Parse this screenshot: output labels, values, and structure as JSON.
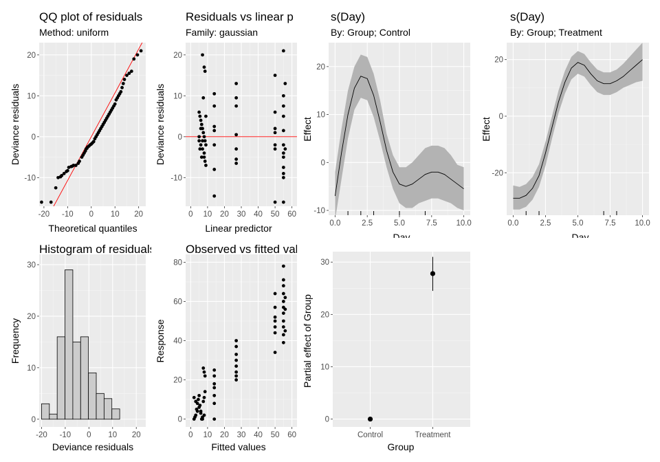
{
  "colors": {
    "panel_bg": "#ebebeb",
    "grid_major": "#ffffff",
    "grid_minor": "#f5f5f5",
    "tick_text": "#4d4d4d",
    "point": "#000000",
    "reference_line": "#ff0000",
    "ribbon": "#b3b3b3",
    "histogram_fill": "#cccccc",
    "histogram_edge": "#000000"
  },
  "chart_data": [
    {
      "id": "qq",
      "type": "scatter",
      "title": "QQ plot of residuals",
      "subtitle": "Method: uniform",
      "xlabel": "Theoretical quantiles",
      "ylabel": "Deviance residuals",
      "xlim": [
        -22,
        23
      ],
      "ylim": [
        -17,
        23
      ],
      "xticks": [
        -20,
        -10,
        0,
        10,
        20
      ],
      "yticks": [
        -10,
        0,
        10,
        20
      ],
      "reference_line": {
        "intercept": 0,
        "slope": 1.07
      },
      "points": [
        [
          -21,
          -16
        ],
        [
          -17,
          -16
        ],
        [
          -15,
          -12.5
        ],
        [
          -14,
          -10
        ],
        [
          -13,
          -9.8
        ],
        [
          -12.5,
          -9.5
        ],
        [
          -11.5,
          -9
        ],
        [
          -10.5,
          -8.5
        ],
        [
          -10,
          -8.3
        ],
        [
          -9.5,
          -7.5
        ],
        [
          -8.5,
          -7.3
        ],
        [
          -8,
          -7.2
        ],
        [
          -7.5,
          -7
        ],
        [
          -6.5,
          -7
        ],
        [
          -5.5,
          -6.5
        ],
        [
          -5,
          -6
        ],
        [
          -4,
          -5
        ],
        [
          -3.5,
          -4.5
        ],
        [
          -3,
          -4
        ],
        [
          -2.5,
          -3.5
        ],
        [
          -2.2,
          -3
        ],
        [
          -1.8,
          -2.8
        ],
        [
          -1.5,
          -2.5
        ],
        [
          -1,
          -2.3
        ],
        [
          -0.5,
          -2
        ],
        [
          0,
          -1.8
        ],
        [
          0.5,
          -1.5
        ],
        [
          1,
          -1.2
        ],
        [
          1.5,
          -0.5
        ],
        [
          2,
          0
        ],
        [
          2.5,
          0.5
        ],
        [
          3,
          1
        ],
        [
          3.5,
          1.5
        ],
        [
          4,
          2
        ],
        [
          4.5,
          2.5
        ],
        [
          5,
          3
        ],
        [
          5.5,
          3.5
        ],
        [
          6,
          4
        ],
        [
          6.5,
          4.5
        ],
        [
          7,
          5
        ],
        [
          7.5,
          5.5
        ],
        [
          8,
          6
        ],
        [
          8.5,
          6.5
        ],
        [
          9,
          7
        ],
        [
          9.5,
          7.5
        ],
        [
          10,
          8
        ],
        [
          10.5,
          9
        ],
        [
          11,
          9.5
        ],
        [
          11.5,
          10
        ],
        [
          12,
          10.5
        ],
        [
          12.5,
          11
        ],
        [
          13,
          12
        ],
        [
          13.5,
          13
        ],
        [
          14,
          14
        ],
        [
          15,
          15
        ],
        [
          16,
          15.5
        ],
        [
          17,
          16
        ],
        [
          18,
          19
        ],
        [
          19.5,
          20
        ],
        [
          21,
          21
        ]
      ]
    },
    {
      "id": "resid_vs_lp",
      "type": "scatter",
      "title": "Residuals vs linear p",
      "subtitle": "Family: gaussian",
      "xlabel": "Linear predictor",
      "ylabel": "Deviance residuals",
      "xlim": [
        -3,
        63
      ],
      "ylim": [
        -17,
        23
      ],
      "xticks": [
        0,
        10,
        20,
        30,
        40,
        50,
        60
      ],
      "yticks": [
        -10,
        0,
        10,
        20
      ],
      "reference_line": {
        "intercept": 0,
        "slope": 0
      },
      "points": [
        [
          5,
          6
        ],
        [
          5.5,
          5
        ],
        [
          6,
          4
        ],
        [
          6.5,
          3
        ],
        [
          7,
          2
        ],
        [
          7.5,
          1
        ],
        [
          8,
          0
        ],
        [
          8.5,
          -1
        ],
        [
          9,
          -2
        ],
        [
          5,
          -1
        ],
        [
          6,
          -2
        ],
        [
          7,
          -3
        ],
        [
          8,
          -4
        ],
        [
          8.5,
          -6
        ],
        [
          9,
          -7
        ],
        [
          5.5,
          -3
        ],
        [
          6.5,
          -5
        ],
        [
          7.5,
          9.5
        ],
        [
          8,
          17
        ],
        [
          8.5,
          16
        ],
        [
          7,
          20
        ],
        [
          9,
          5
        ],
        [
          6,
          2
        ],
        [
          5,
          0
        ],
        [
          8,
          -5
        ],
        [
          7,
          -1
        ],
        [
          14,
          10.5
        ],
        [
          14,
          7.5
        ],
        [
          14,
          2.5
        ],
        [
          14,
          1.5
        ],
        [
          14,
          -2
        ],
        [
          14,
          -8
        ],
        [
          14,
          -14.5
        ],
        [
          27,
          13
        ],
        [
          27,
          9.5
        ],
        [
          27,
          7.5
        ],
        [
          27,
          0.5
        ],
        [
          27,
          -3
        ],
        [
          27,
          -5.5
        ],
        [
          27,
          -6.5
        ],
        [
          50,
          15
        ],
        [
          50,
          6
        ],
        [
          50,
          2
        ],
        [
          50,
          1
        ],
        [
          50,
          -2
        ],
        [
          50,
          -3
        ],
        [
          50,
          -16
        ],
        [
          55,
          21
        ],
        [
          55,
          10
        ],
        [
          55,
          7.5
        ],
        [
          55,
          5
        ],
        [
          55,
          1.5
        ],
        [
          55,
          -2
        ],
        [
          55,
          -4
        ],
        [
          55,
          -5
        ],
        [
          55,
          -7.5
        ],
        [
          55,
          -9
        ],
        [
          55,
          -10
        ],
        [
          55,
          -16
        ],
        [
          56,
          13
        ],
        [
          56,
          -3
        ]
      ]
    },
    {
      "id": "s_day_control",
      "type": "line",
      "title": "s(Day)",
      "subtitle": "By: Group; Control",
      "xlabel": "Day",
      "ylabel": "Effect",
      "xlim": [
        -0.5,
        10.5
      ],
      "ylim": [
        -11,
        25
      ],
      "xticks": [
        0.0,
        2.5,
        5.0,
        7.5,
        10.0
      ],
      "xtick_labels": [
        "0.0",
        "2.5",
        "5.0",
        "7.5",
        "10.0"
      ],
      "yticks": [
        -10,
        0,
        10,
        20
      ],
      "rug": [
        1,
        2,
        3,
        5,
        7
      ],
      "x": [
        0,
        0.5,
        1,
        1.5,
        2,
        2.5,
        3,
        3.5,
        4,
        4.5,
        5,
        5.5,
        6,
        6.5,
        7,
        7.5,
        8,
        8.5,
        9,
        9.5,
        10
      ],
      "y": [
        -7,
        2,
        10,
        15.5,
        18,
        17.5,
        14,
        8.5,
        2.5,
        -2,
        -4.5,
        -5,
        -4.5,
        -3.5,
        -2.5,
        -2,
        -2,
        -2.5,
        -3.5,
        -4.5,
        -5.5
      ],
      "lower": [
        -12,
        -3.5,
        5,
        11,
        13.5,
        13,
        9.5,
        4.5,
        -1,
        -5.5,
        -8.5,
        -9.5,
        -9.5,
        -8.5,
        -8,
        -7.5,
        -7.5,
        -8,
        -8.5,
        -9.5,
        -10
      ],
      "upper": [
        -2,
        7,
        15,
        20,
        22.5,
        22,
        18.5,
        13,
        6,
        1.5,
        -1,
        -1,
        0,
        1.5,
        3,
        3.5,
        3.5,
        3,
        1.5,
        -0.5,
        -1
      ]
    },
    {
      "id": "s_day_treatment",
      "type": "line",
      "title": "s(Day)",
      "subtitle": "By: Group; Treatment",
      "xlabel": "Day",
      "ylabel": "Effect",
      "xlim": [
        -0.5,
        10.5
      ],
      "ylim": [
        -35,
        26
      ],
      "xticks": [
        0.0,
        2.5,
        5.0,
        7.5,
        10.0
      ],
      "xtick_labels": [
        "0.0",
        "2.5",
        "5.0",
        "7.5",
        "10.0"
      ],
      "yticks": [
        -20,
        0,
        20
      ],
      "rug": [
        1,
        2,
        7,
        8
      ],
      "x": [
        0,
        0.5,
        1,
        1.5,
        2,
        2.5,
        3,
        3.5,
        4,
        4.5,
        5,
        5.5,
        6,
        6.5,
        7,
        7.5,
        8,
        8.5,
        9,
        9.5,
        10
      ],
      "y": [
        -29,
        -29,
        -28,
        -25.5,
        -21,
        -13,
        -4,
        5,
        12,
        17,
        19,
        18,
        15,
        12.5,
        11.5,
        11.5,
        12.5,
        14,
        16,
        18,
        20
      ],
      "lower": [
        -33,
        -33,
        -32,
        -29.5,
        -25,
        -17.5,
        -8,
        1,
        8,
        13,
        15,
        14,
        11,
        8.5,
        7.5,
        7.5,
        8.5,
        10,
        11,
        12,
        12.5
      ],
      "upper": [
        -24.5,
        -25,
        -24,
        -21.5,
        -17,
        -9,
        0,
        9,
        16,
        21,
        23,
        22,
        19,
        16.5,
        15.5,
        15.5,
        16.5,
        18.5,
        21,
        23.5,
        26
      ]
    },
    {
      "id": "histogram",
      "type": "bar",
      "title": "Histogram of residuals",
      "xlabel": "Deviance residuals",
      "ylabel": "Frequency",
      "xlim": [
        -21,
        24
      ],
      "ylim": [
        -1.5,
        32
      ],
      "xticks": [
        -20,
        -10,
        0,
        10,
        20
      ],
      "yticks": [
        0,
        10,
        20,
        30
      ],
      "bin_width": 3.3,
      "bin_edges_start": -20,
      "values": [
        3,
        1,
        16,
        29,
        15,
        16,
        9,
        5,
        4,
        2
      ]
    },
    {
      "id": "obs_vs_fitted",
      "type": "scatter",
      "title": "Observed vs fitted values",
      "xlabel": "Fitted values",
      "ylabel": "Response",
      "xlim": [
        -3,
        63
      ],
      "ylim": [
        -4,
        84
      ],
      "xticks": [
        0,
        10,
        20,
        30,
        40,
        50,
        60
      ],
      "yticks": [
        0,
        20,
        40,
        60,
        80
      ],
      "points": [
        [
          2,
          0
        ],
        [
          2.5,
          1
        ],
        [
          3,
          2
        ],
        [
          3.5,
          5
        ],
        [
          4,
          8
        ],
        [
          4.5,
          10
        ],
        [
          5,
          12
        ],
        [
          5.5,
          7
        ],
        [
          6,
          3
        ],
        [
          6.5,
          0
        ],
        [
          7,
          1
        ],
        [
          7.5,
          9
        ],
        [
          8,
          11
        ],
        [
          8.5,
          14
        ],
        [
          5,
          6
        ],
        [
          6,
          4
        ],
        [
          7,
          0
        ],
        [
          8,
          2
        ],
        [
          3,
          9
        ],
        [
          4,
          4
        ],
        [
          2,
          11
        ],
        [
          7.5,
          26
        ],
        [
          8,
          24
        ],
        [
          8.5,
          22
        ],
        [
          14,
          25
        ],
        [
          14,
          22
        ],
        [
          14,
          18
        ],
        [
          14,
          16
        ],
        [
          14,
          12
        ],
        [
          14,
          8
        ],
        [
          14,
          0
        ],
        [
          27,
          40
        ],
        [
          27,
          37
        ],
        [
          27,
          33
        ],
        [
          27,
          30
        ],
        [
          27,
          27
        ],
        [
          27,
          24
        ],
        [
          27,
          22
        ],
        [
          27,
          20
        ],
        [
          50,
          64
        ],
        [
          50,
          57
        ],
        [
          50,
          52
        ],
        [
          50,
          50
        ],
        [
          50,
          47
        ],
        [
          50,
          44
        ],
        [
          50,
          34
        ],
        [
          55,
          78
        ],
        [
          55,
          71
        ],
        [
          55,
          68
        ],
        [
          55,
          64
        ],
        [
          55,
          60
        ],
        [
          55,
          57
        ],
        [
          55,
          54
        ],
        [
          55,
          50
        ],
        [
          55,
          47
        ],
        [
          55,
          43
        ],
        [
          55,
          39
        ],
        [
          56,
          62
        ],
        [
          56,
          56
        ],
        [
          56,
          45
        ]
      ]
    },
    {
      "id": "partial_group",
      "type": "scatter",
      "xlabel": "Group",
      "ylabel": "Partial effect of Group",
      "categories": [
        "Control",
        "Treatment"
      ],
      "ylim": [
        -1.5,
        32
      ],
      "yticks": [
        0,
        10,
        20,
        30
      ],
      "estimates": [
        0,
        27.8
      ],
      "lower": [
        -0.3,
        24.5
      ],
      "upper": [
        0.3,
        31
      ]
    }
  ]
}
